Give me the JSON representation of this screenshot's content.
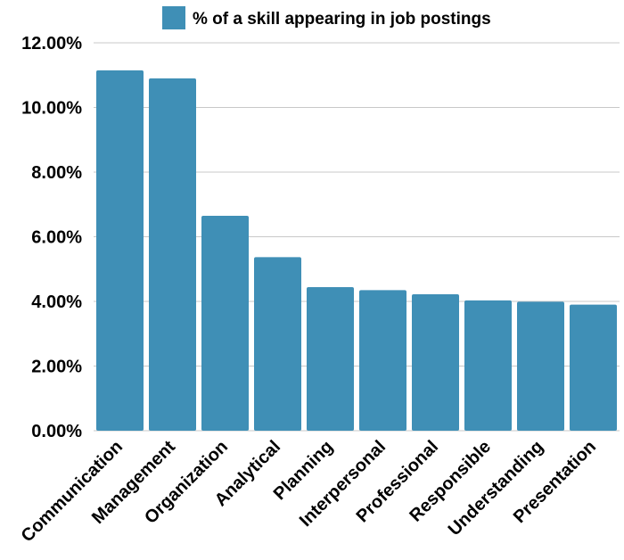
{
  "chart_data": {
    "type": "bar",
    "categories": [
      "Communication",
      "Management",
      "Organization",
      "Analytical",
      "Planning",
      "Interpersonal",
      "Professional",
      "Responsible",
      "Understanding",
      "Presentation"
    ],
    "series": [
      {
        "name": "% of a skill appearing in job postings",
        "values": [
          11.15,
          10.9,
          6.65,
          5.37,
          4.44,
          4.35,
          4.22,
          4.03,
          3.99,
          3.9
        ]
      }
    ],
    "y_ticks": [
      "0.00%",
      "2.00%",
      "4.00%",
      "6.00%",
      "8.00%",
      "10.00%",
      "12.00%"
    ],
    "ylim": [
      0,
      12
    ],
    "grid": true,
    "legend": "top-center",
    "bar_color": "#3f8fb6"
  }
}
